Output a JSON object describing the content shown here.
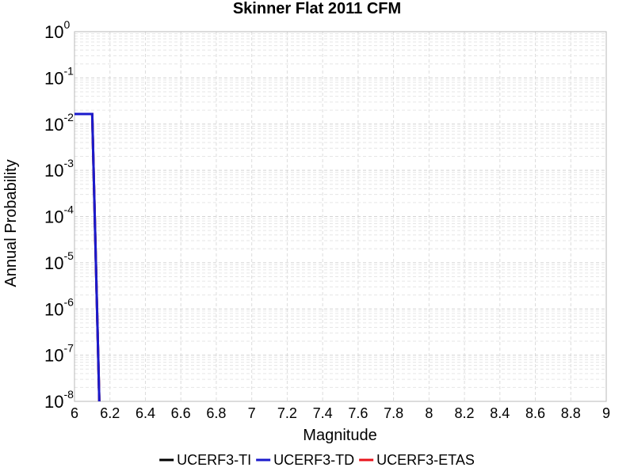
{
  "chart_data": {
    "type": "line",
    "title": "Skinner Flat 2011 CFM",
    "xlabel": "Magnitude",
    "ylabel": "Annual Probability",
    "xlim": [
      6,
      9
    ],
    "ylim": [
      1e-08,
      1
    ],
    "y_scale": "log",
    "grid": true,
    "legend_position": "bottom",
    "x_ticks": [
      "6",
      "6.2",
      "6.4",
      "6.6",
      "6.8",
      "7",
      "7.2",
      "7.4",
      "7.6",
      "7.8",
      "8",
      "8.2",
      "8.4",
      "8.6",
      "8.8",
      "9"
    ],
    "y_ticks": [
      {
        "base": "10",
        "exp": "0",
        "value": 1
      },
      {
        "base": "10",
        "exp": "-1",
        "value": 0.1
      },
      {
        "base": "10",
        "exp": "-2",
        "value": 0.01
      },
      {
        "base": "10",
        "exp": "-3",
        "value": 0.001
      },
      {
        "base": "10",
        "exp": "-4",
        "value": 0.0001
      },
      {
        "base": "10",
        "exp": "-5",
        "value": 1e-05
      },
      {
        "base": "10",
        "exp": "-6",
        "value": 1e-06
      },
      {
        "base": "10",
        "exp": "-7",
        "value": 1e-07
      },
      {
        "base": "10",
        "exp": "-8",
        "value": 1e-08
      }
    ],
    "series": [
      {
        "name": "UCERF3-TI",
        "color": "#000000",
        "x": [
          6.0,
          6.1,
          6.14
        ],
        "y": [
          0.0165,
          0.0165,
          1e-08
        ]
      },
      {
        "name": "UCERF3-ETAS",
        "color": "#e8141c",
        "x": [
          6.0,
          6.1,
          6.14
        ],
        "y": [
          0.0165,
          0.0165,
          1e-08
        ]
      },
      {
        "name": "UCERF3-TD",
        "color": "#1a1acc",
        "x": [
          6.0,
          6.1,
          6.14
        ],
        "y": [
          0.0165,
          0.0165,
          1e-08
        ]
      }
    ],
    "legend": [
      {
        "name": "UCERF3-TI",
        "color": "#000000"
      },
      {
        "name": "UCERF3-TD",
        "color": "#1a1acc"
      },
      {
        "name": "UCERF3-ETAS",
        "color": "#e8141c"
      }
    ]
  }
}
